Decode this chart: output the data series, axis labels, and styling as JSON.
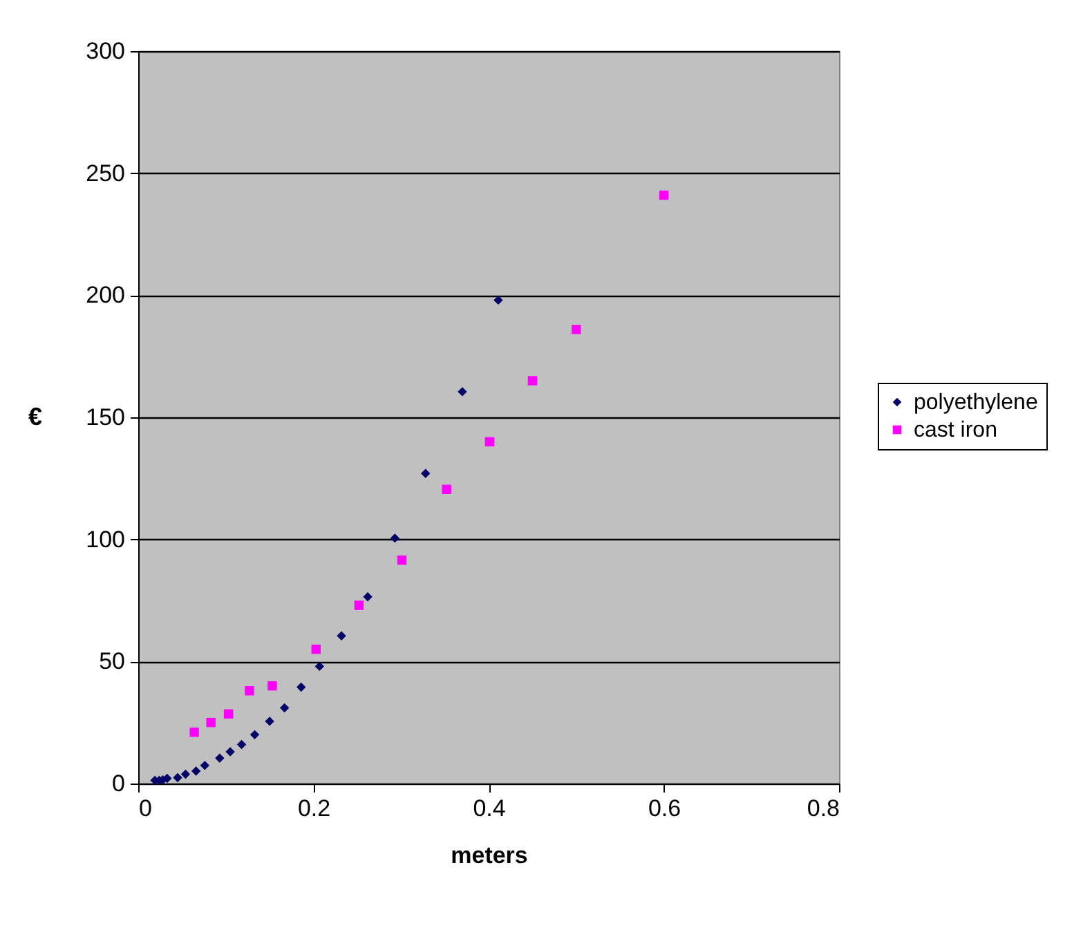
{
  "chart_data": {
    "type": "scatter",
    "xlabel": "meters",
    "ylabel": "€",
    "xlim": [
      0,
      0.8
    ],
    "xticks": [
      0,
      0.2,
      0.4,
      0.6,
      0.8
    ],
    "ylim": [
      0,
      300
    ],
    "yticks": [
      0,
      50,
      100,
      150,
      200,
      250,
      300
    ],
    "grid": "y",
    "legend": "right",
    "series": [
      {
        "name": "polyethylene",
        "color": "#000066",
        "marker": "diamond",
        "x": [
          0.019,
          0.024,
          0.028,
          0.033,
          0.045,
          0.054,
          0.066,
          0.076,
          0.093,
          0.105,
          0.118,
          0.133,
          0.15,
          0.167,
          0.186,
          0.207,
          0.232,
          0.262,
          0.293,
          0.328,
          0.37,
          0.411
        ],
        "values": [
          1.3,
          1.3,
          1.5,
          2.1,
          2.4,
          3.8,
          5.1,
          7.4,
          10.4,
          13,
          16,
          20,
          25.5,
          31,
          39.5,
          48,
          60.5,
          76.5,
          100.5,
          127,
          160.5,
          198
        ]
      },
      {
        "name": "cast iron",
        "color": "#ff00ff",
        "marker": "square",
        "x": [
          0.064,
          0.083,
          0.103,
          0.127,
          0.153,
          0.203,
          0.252,
          0.301,
          0.352,
          0.401,
          0.45,
          0.5,
          0.6
        ],
        "values": [
          21,
          25,
          28.5,
          38,
          40,
          55,
          73,
          91.5,
          120.5,
          140,
          165,
          186,
          241
        ]
      }
    ]
  }
}
